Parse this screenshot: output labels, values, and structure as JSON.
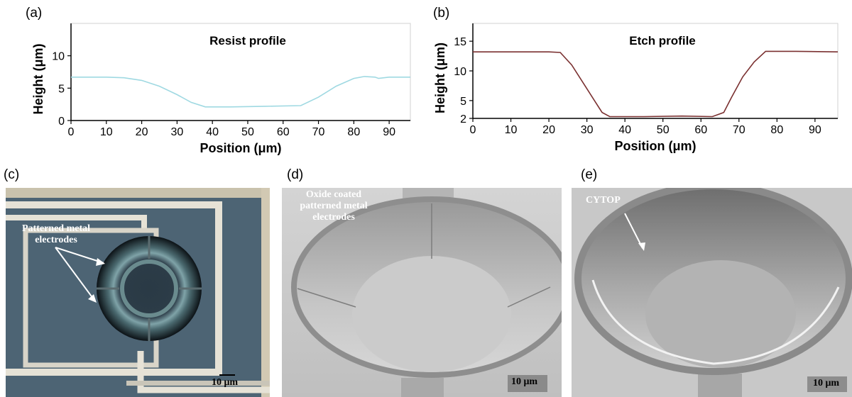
{
  "panel_labels": [
    "(a)",
    "(b)",
    "(c)",
    "(d)",
    "(e)"
  ],
  "chart_data": [
    {
      "type": "line",
      "title": "Resist profile",
      "xlabel": "Position (μm)",
      "ylabel": "Height (μm)",
      "xlim": [
        0,
        96
      ],
      "ylim": [
        0,
        15
      ],
      "xticks": [
        0,
        10,
        20,
        30,
        40,
        50,
        60,
        70,
        80,
        90
      ],
      "yticks": [
        0,
        5,
        10
      ],
      "grid": false,
      "line_color": "#9fd9e2",
      "series": [
        {
          "x": [
            0,
            5,
            10,
            15,
            20,
            25,
            30,
            34,
            38,
            45,
            55,
            65,
            70,
            75,
            80,
            83,
            86,
            87,
            90,
            96
          ],
          "y": [
            6.7,
            6.7,
            6.7,
            6.6,
            6.2,
            5.3,
            4.0,
            2.8,
            2.1,
            2.1,
            2.2,
            2.3,
            3.6,
            5.3,
            6.5,
            6.8,
            6.7,
            6.5,
            6.7,
            6.7
          ]
        }
      ]
    },
    {
      "type": "line",
      "title": "Etch profile",
      "xlabel": "Position (μm)",
      "ylabel": "Height (μm)",
      "xlim": [
        0,
        96
      ],
      "ylim": [
        2,
        18
      ],
      "xticks": [
        0,
        10,
        20,
        30,
        40,
        50,
        60,
        70,
        80,
        90
      ],
      "yticks": [
        2,
        5,
        10,
        15
      ],
      "grid": false,
      "line_color": "#7a3030",
      "series": [
        {
          "x": [
            0,
            10,
            20,
            23,
            26,
            29,
            32,
            34,
            36,
            45,
            55,
            63,
            66,
            68,
            71,
            74,
            77,
            85,
            96
          ],
          "y": [
            13.2,
            13.2,
            13.2,
            13.1,
            11.0,
            8.0,
            5.0,
            3.0,
            2.3,
            2.3,
            2.4,
            2.3,
            3.0,
            5.5,
            9.0,
            11.5,
            13.3,
            13.3,
            13.2
          ]
        }
      ]
    }
  ],
  "images": {
    "c": {
      "annotation": [
        "Patterned metal",
        "electrodes"
      ],
      "scale": "10 μm"
    },
    "d": {
      "annotation": [
        "Oxide coated",
        "patterned metal",
        "electrodes"
      ],
      "scale": "10 μm"
    },
    "e": {
      "annotation": [
        "CYTOP"
      ],
      "scale": "10 μm"
    }
  }
}
